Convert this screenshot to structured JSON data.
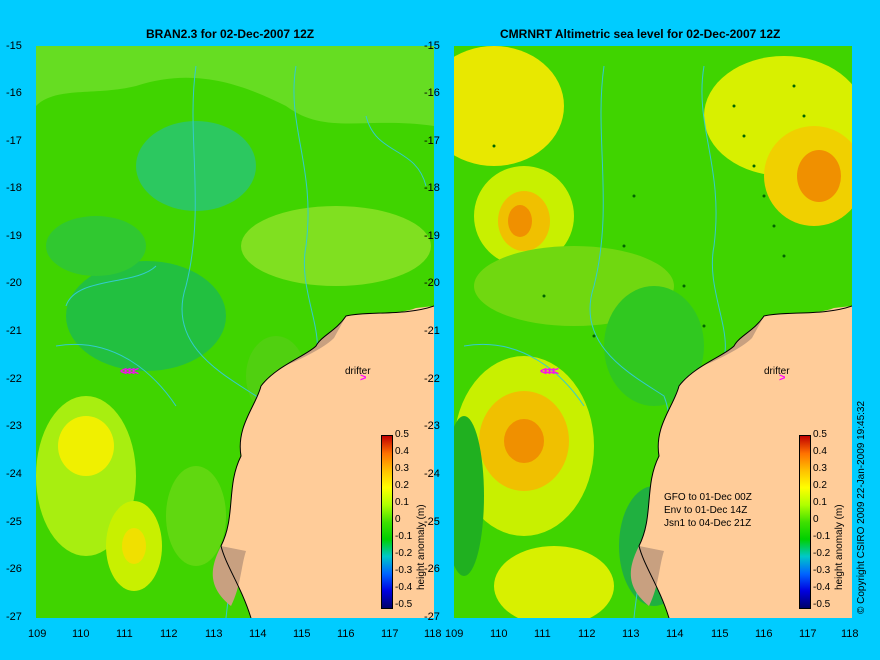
{
  "left": {
    "title": "BRAN2.3 for 02-Dec-2007 12Z"
  },
  "right": {
    "title": "CMRNRT Altimetric sea level  for 02-Dec-2007 12Z",
    "notes": [
      "GFO to 01-Dec 00Z",
      "Env to 01-Dec 14Z",
      "Jsn1 to 04-Dec 21Z"
    ]
  },
  "axes": {
    "y_ticks": [
      "-15",
      "-16",
      "-17",
      "-18",
      "-19",
      "-20",
      "-21",
      "-22",
      "-23",
      "-24",
      "-25",
      "-26",
      "-27"
    ],
    "x_ticks": [
      "109",
      "110",
      "111",
      "112",
      "113",
      "114",
      "115",
      "116",
      "117",
      "118"
    ]
  },
  "colorbar": {
    "labels": [
      "0.5",
      "0.4",
      "0.3",
      "0.2",
      "0.1",
      "0",
      "-0.1",
      "-0.2",
      "-0.3",
      "-0.4",
      "-0.5"
    ],
    "title": "height anomaly (m)"
  },
  "drifter_label": "drifter",
  "arrow_glyph": ">",
  "chevron_glyph": "<<<<",
  "copyright": "© Copyright CSIRO 2009  22-Jan-2009 19:45:32",
  "colors": {
    "background": "#00ccff",
    "land": "#ffcc99",
    "shelf": "#c8a080",
    "arrow": "#ff00ff",
    "contour": "#33cccc"
  }
}
